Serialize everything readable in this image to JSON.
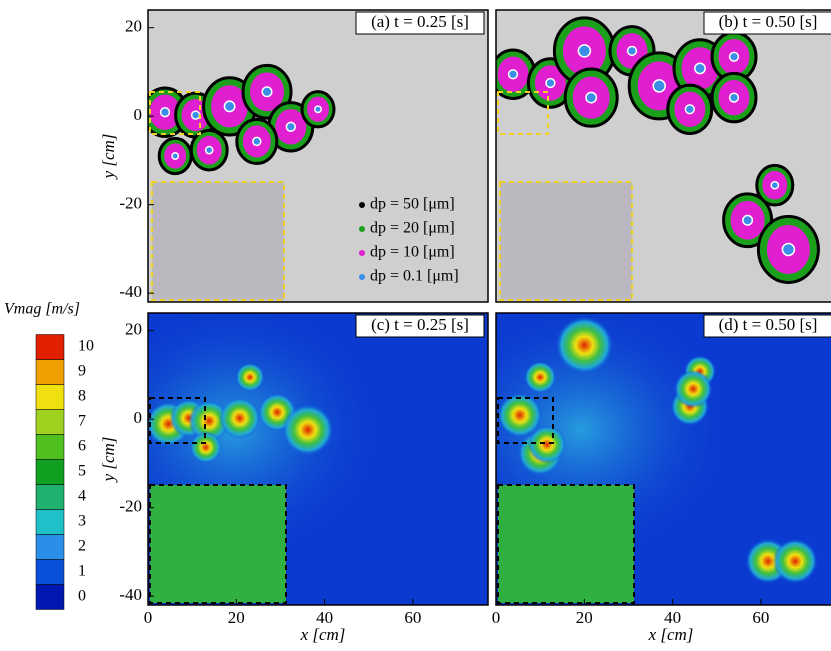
{
  "chart_data": [
    {
      "type": "scatter",
      "title": "(a) t = 0.25 [s]",
      "ylabel": "y [cm]",
      "xlim": [
        0,
        77
      ],
      "ylim": [
        -42,
        24
      ],
      "yticks": [
        -40,
        -20,
        0,
        20
      ],
      "series": [
        {
          "name": "dp = 50 [μm]",
          "color": "#000000"
        },
        {
          "name": "dp = 20 [μm]",
          "color": "#1aa01a"
        },
        {
          "name": "dp = 10 [μm]",
          "color": "#e020d0"
        },
        {
          "name": "dp = 0.1 [μm]",
          "color": "#3a8ee8"
        }
      ]
    },
    {
      "type": "scatter",
      "title": "(b) t = 0.50 [s]",
      "xlim": [
        0,
        77
      ],
      "ylim": [
        -42,
        24
      ]
    },
    {
      "type": "contour",
      "title": "(c) t = 0.25 [s]",
      "ylabel": "y [cm]",
      "xlabel": "x [cm]",
      "xlim": [
        0,
        77
      ],
      "ylim": [
        -42,
        24
      ],
      "xticks": [
        0,
        20,
        40,
        60
      ],
      "yticks": [
        -40,
        -20,
        0,
        20
      ]
    },
    {
      "type": "contour",
      "title": "(d) t = 0.50 [s]",
      "xlabel": "x [cm]",
      "xlim": [
        0,
        77
      ],
      "ylim": [
        -42,
        24
      ],
      "xticks": [
        0,
        20,
        40,
        60
      ]
    },
    {
      "type": "colorbar",
      "title": "Vmag [m/s]",
      "ticks": [
        0,
        1,
        2,
        3,
        4,
        5,
        6,
        7,
        8,
        9,
        10
      ],
      "colors": [
        "#0018b0",
        "#0a4fd8",
        "#2a8fe8",
        "#20c0c8",
        "#20b070",
        "#10a020",
        "#50c020",
        "#a0d020",
        "#f0e010",
        "#f0a000",
        "#e02000"
      ]
    }
  ]
}
